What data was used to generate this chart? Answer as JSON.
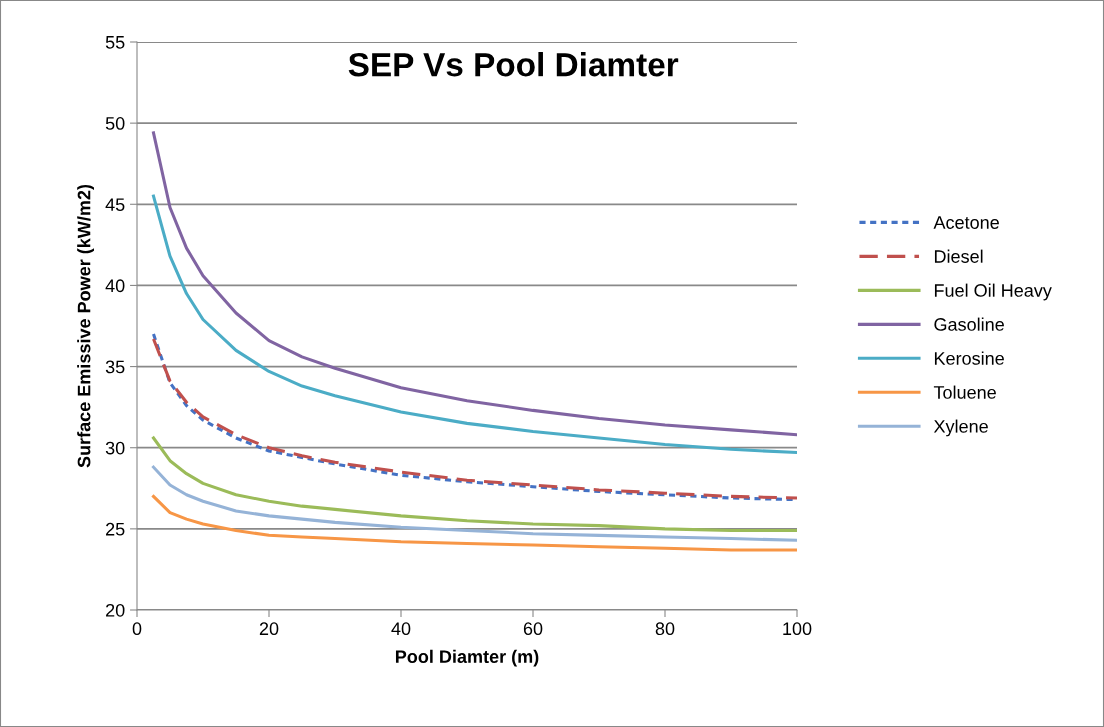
{
  "chart_data": {
    "type": "line",
    "title": "SEP Vs Pool Diamter",
    "xlabel": "Pool Diamter (m)",
    "ylabel": "Surface Emissive Power (kW/m2)",
    "x": [
      2.5,
      5,
      7.5,
      10,
      15,
      20,
      25,
      30,
      40,
      50,
      60,
      70,
      80,
      90,
      100
    ],
    "xlim": [
      0,
      100
    ],
    "xticks": [
      0,
      20,
      40,
      60,
      80,
      100
    ],
    "ylim": [
      20,
      55
    ],
    "yticks": [
      20,
      25,
      30,
      35,
      40,
      45,
      50,
      55
    ],
    "grid": "y",
    "legend": "right",
    "marker": "none",
    "series": [
      {
        "name": "Acetone",
        "color": "#4472c4",
        "line_style": "dotted",
        "values": [
          37.0,
          34.0,
          32.6,
          31.7,
          30.6,
          29.8,
          29.4,
          29.0,
          28.3,
          27.9,
          27.6,
          27.3,
          27.1,
          26.9,
          26.8
        ]
      },
      {
        "name": "Diesel",
        "color": "#c0504d",
        "line_style": "dashed",
        "values": [
          36.7,
          34.1,
          32.8,
          31.9,
          30.8,
          30.0,
          29.5,
          29.1,
          28.5,
          28.0,
          27.7,
          27.4,
          27.2,
          27.0,
          26.9
        ]
      },
      {
        "name": "Fuel Oil Heavy",
        "color": "#9bbb59",
        "line_style": "solid",
        "values": [
          30.6,
          29.2,
          28.4,
          27.8,
          27.1,
          26.7,
          26.4,
          26.2,
          25.8,
          25.5,
          25.3,
          25.2,
          25.0,
          24.9,
          24.9
        ]
      },
      {
        "name": "Gasoline",
        "color": "#8064a2",
        "line_style": "solid",
        "values": [
          49.4,
          44.8,
          42.3,
          40.6,
          38.3,
          36.6,
          35.6,
          34.9,
          33.7,
          32.9,
          32.3,
          31.8,
          31.4,
          31.1,
          30.8
        ]
      },
      {
        "name": "Kerosine",
        "color": "#4bacc6",
        "line_style": "solid",
        "values": [
          45.5,
          41.8,
          39.5,
          37.9,
          36.0,
          34.7,
          33.8,
          33.2,
          32.2,
          31.5,
          31.0,
          30.6,
          30.2,
          29.9,
          29.7
        ]
      },
      {
        "name": "Toluene",
        "color": "#f79646",
        "line_style": "solid",
        "values": [
          27.0,
          26.0,
          25.6,
          25.3,
          24.9,
          24.6,
          24.5,
          24.4,
          24.2,
          24.1,
          24.0,
          23.9,
          23.8,
          23.7,
          23.7
        ]
      },
      {
        "name": "Xylene",
        "color": "#95b3d7",
        "line_style": "solid",
        "values": [
          28.8,
          27.7,
          27.1,
          26.7,
          26.1,
          25.8,
          25.6,
          25.4,
          25.1,
          24.9,
          24.7,
          24.6,
          24.5,
          24.4,
          24.3
        ]
      }
    ]
  }
}
